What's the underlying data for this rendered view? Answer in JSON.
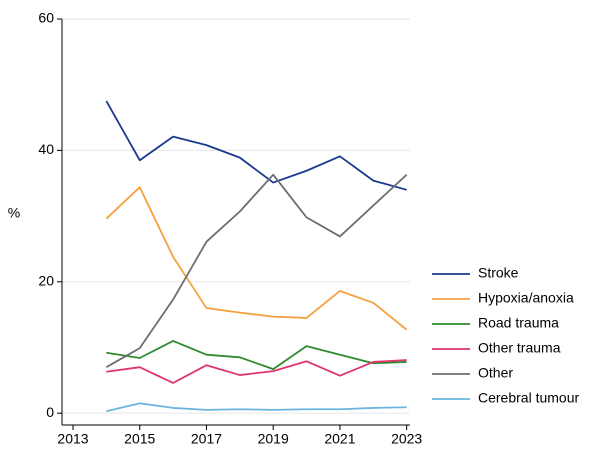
{
  "chart_data": {
    "type": "line",
    "x": [
      2014,
      2015,
      2016,
      2017,
      2018,
      2019,
      2020,
      2021,
      2022,
      2023
    ],
    "series": [
      {
        "name": "Stroke",
        "color": "#1a3a8f",
        "values": [
          47.5,
          38.5,
          42.1,
          40.8,
          38.9,
          35.1,
          36.9,
          39.1,
          35.4,
          34.0
        ]
      },
      {
        "name": "Hypoxia/anoxia",
        "color": "#f5a040",
        "values": [
          29.6,
          34.4,
          23.8,
          16.0,
          15.3,
          14.7,
          14.5,
          18.6,
          16.8,
          12.7
        ]
      },
      {
        "name": "Road trauma",
        "color": "#2e8b2e",
        "values": [
          9.2,
          8.4,
          11.0,
          8.9,
          8.5,
          6.7,
          10.2,
          8.9,
          7.6,
          7.8
        ]
      },
      {
        "name": "Other trauma",
        "color": "#e0336f",
        "values": [
          6.3,
          7.0,
          4.6,
          7.3,
          5.8,
          6.4,
          7.9,
          5.7,
          7.8,
          8.1
        ]
      },
      {
        "name": "Other",
        "color": "#6e6e6e",
        "values": [
          7.0,
          9.9,
          17.3,
          26.1,
          30.7,
          36.3,
          29.8,
          26.9,
          31.6,
          36.3
        ]
      },
      {
        "name": "Cerebral tumour",
        "color": "#6cb4e0",
        "values": [
          0.3,
          1.5,
          0.8,
          0.5,
          0.6,
          0.5,
          0.6,
          0.6,
          0.8,
          0.9
        ]
      }
    ],
    "y_label": "%",
    "xlim": [
      2012.67,
      2023.1
    ],
    "xticks": [
      2013,
      2015,
      2017,
      2019,
      2021,
      2023
    ],
    "ylim": [
      -1.8,
      60
    ],
    "yticks": [
      0,
      20,
      40,
      60
    ],
    "grid": true,
    "legend": "right"
  }
}
